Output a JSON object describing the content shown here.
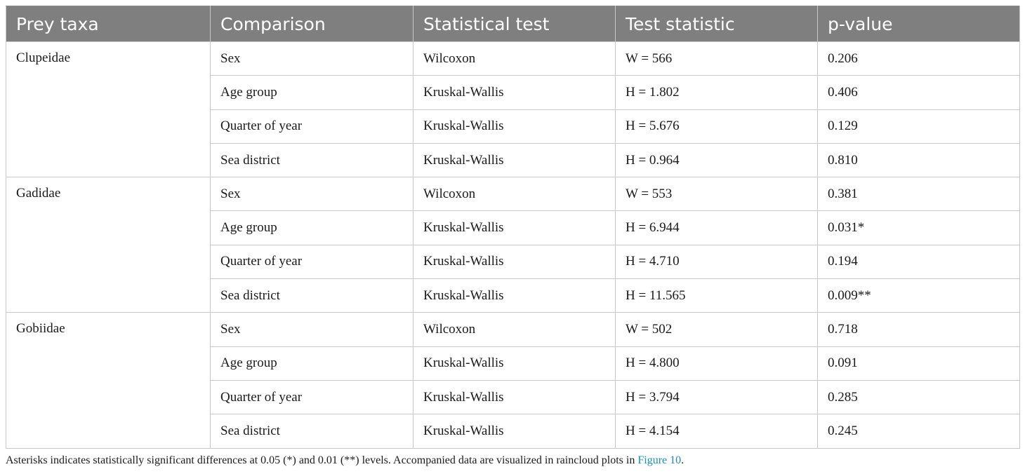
{
  "table": {
    "headers": [
      "Prey taxa",
      "Comparison",
      "Statistical test",
      "Test statistic",
      "p-value"
    ],
    "groups": [
      {
        "taxa": "Clupeidae",
        "rows": [
          {
            "comparison": "Sex",
            "test": "Wilcoxon",
            "statistic": "W = 566",
            "p": "0.206"
          },
          {
            "comparison": "Age group",
            "test": "Kruskal-Wallis",
            "statistic": "H = 1.802",
            "p": "0.406"
          },
          {
            "comparison": "Quarter of year",
            "test": "Kruskal-Wallis",
            "statistic": "H = 5.676",
            "p": "0.129"
          },
          {
            "comparison": "Sea district",
            "test": "Kruskal-Wallis",
            "statistic": "H = 0.964",
            "p": "0.810"
          }
        ]
      },
      {
        "taxa": "Gadidae",
        "rows": [
          {
            "comparison": "Sex",
            "test": "Wilcoxon",
            "statistic": "W = 553",
            "p": "0.381"
          },
          {
            "comparison": "Age group",
            "test": "Kruskal-Wallis",
            "statistic": "H = 6.944",
            "p": "0.031*"
          },
          {
            "comparison": "Quarter of year",
            "test": "Kruskal-Wallis",
            "statistic": "H = 4.710",
            "p": "0.194"
          },
          {
            "comparison": "Sea district",
            "test": "Kruskal-Wallis",
            "statistic": "H = 11.565",
            "p": "0.009**"
          }
        ]
      },
      {
        "taxa": "Gobiidae",
        "rows": [
          {
            "comparison": "Sex",
            "test": "Wilcoxon",
            "statistic": "W = 502",
            "p": "0.718"
          },
          {
            "comparison": "Age group",
            "test": "Kruskal-Wallis",
            "statistic": "H = 4.800",
            "p": "0.091"
          },
          {
            "comparison": "Quarter of year",
            "test": "Kruskal-Wallis",
            "statistic": "H = 3.794",
            "p": "0.285"
          },
          {
            "comparison": "Sea district",
            "test": "Kruskal-Wallis",
            "statistic": "H = 4.154",
            "p": "0.245"
          }
        ]
      }
    ]
  },
  "footnote": {
    "text": "Asterisks indicates statistically significant differences at 0.05 (*) and 0.01 (**) levels. Accompanied data are visualized in raincloud plots in ",
    "link_text": "Figure 10",
    "end": "."
  },
  "colors": {
    "header_bg": "#7f7f7f",
    "header_text": "#ffffff",
    "link": "#1a8fb0",
    "border": "#c8c8c8"
  }
}
